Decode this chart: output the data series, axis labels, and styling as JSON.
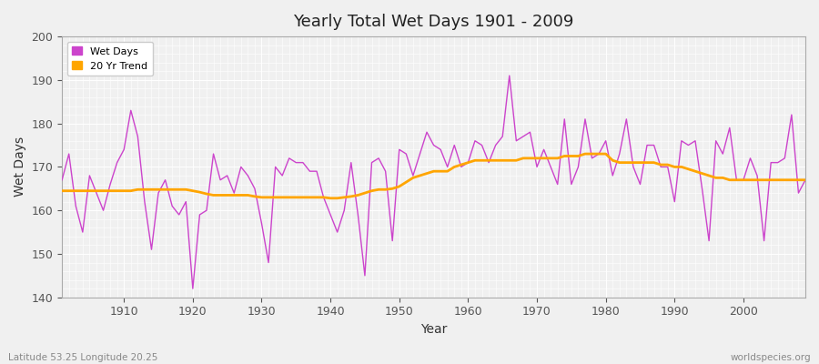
{
  "title": "Yearly Total Wet Days 1901 - 2009",
  "xlabel": "Year",
  "ylabel": "Wet Days",
  "lat_lon_label": "Latitude 53.25 Longitude 20.25",
  "watermark": "worldspecies.org",
  "ylim": [
    140,
    200
  ],
  "xlim": [
    1901,
    2009
  ],
  "yticks": [
    140,
    150,
    160,
    170,
    180,
    190,
    200
  ],
  "xticks": [
    1910,
    1920,
    1930,
    1940,
    1950,
    1960,
    1970,
    1980,
    1990,
    2000
  ],
  "wet_days_color": "#CC44CC",
  "trend_color": "#FFA500",
  "background_color": "#F0F0F0",
  "plot_bg_color": "#F0F0F0",
  "grid_color": "#FFFFFF",
  "years": [
    1901,
    1902,
    1903,
    1904,
    1905,
    1906,
    1907,
    1908,
    1909,
    1910,
    1911,
    1912,
    1913,
    1914,
    1915,
    1916,
    1917,
    1918,
    1919,
    1920,
    1921,
    1922,
    1923,
    1924,
    1925,
    1926,
    1927,
    1928,
    1929,
    1930,
    1931,
    1932,
    1933,
    1934,
    1935,
    1936,
    1937,
    1938,
    1939,
    1940,
    1941,
    1942,
    1943,
    1944,
    1945,
    1946,
    1947,
    1948,
    1949,
    1950,
    1951,
    1952,
    1953,
    1954,
    1955,
    1956,
    1957,
    1958,
    1959,
    1960,
    1961,
    1962,
    1963,
    1964,
    1965,
    1966,
    1967,
    1968,
    1969,
    1970,
    1971,
    1972,
    1973,
    1974,
    1975,
    1976,
    1977,
    1978,
    1979,
    1980,
    1981,
    1982,
    1983,
    1984,
    1985,
    1986,
    1987,
    1988,
    1989,
    1990,
    1991,
    1992,
    1993,
    1994,
    1995,
    1996,
    1997,
    1998,
    1999,
    2000,
    2001,
    2002,
    2003,
    2004,
    2005,
    2006,
    2007,
    2008,
    2009
  ],
  "wet_days": [
    167,
    173,
    161,
    155,
    168,
    164,
    160,
    166,
    171,
    174,
    183,
    177,
    162,
    151,
    164,
    167,
    161,
    159,
    162,
    142,
    159,
    160,
    173,
    167,
    168,
    164,
    170,
    168,
    165,
    157,
    148,
    170,
    168,
    172,
    171,
    171,
    169,
    169,
    163,
    159,
    155,
    160,
    171,
    159,
    145,
    171,
    172,
    169,
    153,
    174,
    173,
    168,
    173,
    178,
    175,
    174,
    170,
    175,
    170,
    171,
    176,
    175,
    171,
    175,
    177,
    191,
    176,
    177,
    178,
    170,
    174,
    170,
    166,
    181,
    166,
    170,
    181,
    172,
    173,
    176,
    168,
    173,
    181,
    170,
    166,
    175,
    175,
    170,
    170,
    162,
    176,
    175,
    176,
    165,
    153,
    176,
    173,
    179,
    167,
    167,
    172,
    168,
    153,
    171,
    171,
    172,
    182,
    164,
    167
  ],
  "trend": [
    164.5,
    164.5,
    164.5,
    164.5,
    164.5,
    164.5,
    164.5,
    164.5,
    164.5,
    164.5,
    164.5,
    164.8,
    164.8,
    164.8,
    164.8,
    164.8,
    164.8,
    164.8,
    164.8,
    164.5,
    164.2,
    163.8,
    163.5,
    163.5,
    163.5,
    163.5,
    163.5,
    163.5,
    163.2,
    163.0,
    163.0,
    163.0,
    163.0,
    163.0,
    163.0,
    163.0,
    163.0,
    163.0,
    163.0,
    162.8,
    162.8,
    163.0,
    163.2,
    163.5,
    164.0,
    164.5,
    164.8,
    164.8,
    165.0,
    165.5,
    166.5,
    167.5,
    168.0,
    168.5,
    169.0,
    169.0,
    169.0,
    170.0,
    170.5,
    171.0,
    171.5,
    171.5,
    171.5,
    171.5,
    171.5,
    171.5,
    171.5,
    172.0,
    172.0,
    172.0,
    172.0,
    172.0,
    172.0,
    172.5,
    172.5,
    172.5,
    173.0,
    173.0,
    173.0,
    173.0,
    171.5,
    171.0,
    171.0,
    171.0,
    171.0,
    171.0,
    171.0,
    170.5,
    170.5,
    170.0,
    170.0,
    169.5,
    169.0,
    168.5,
    168.0,
    167.5,
    167.5,
    167.0,
    167.0,
    167.0,
    167.0,
    167.0,
    167.0,
    167.0,
    167.0,
    167.0,
    167.0,
    167.0,
    167.0
  ]
}
